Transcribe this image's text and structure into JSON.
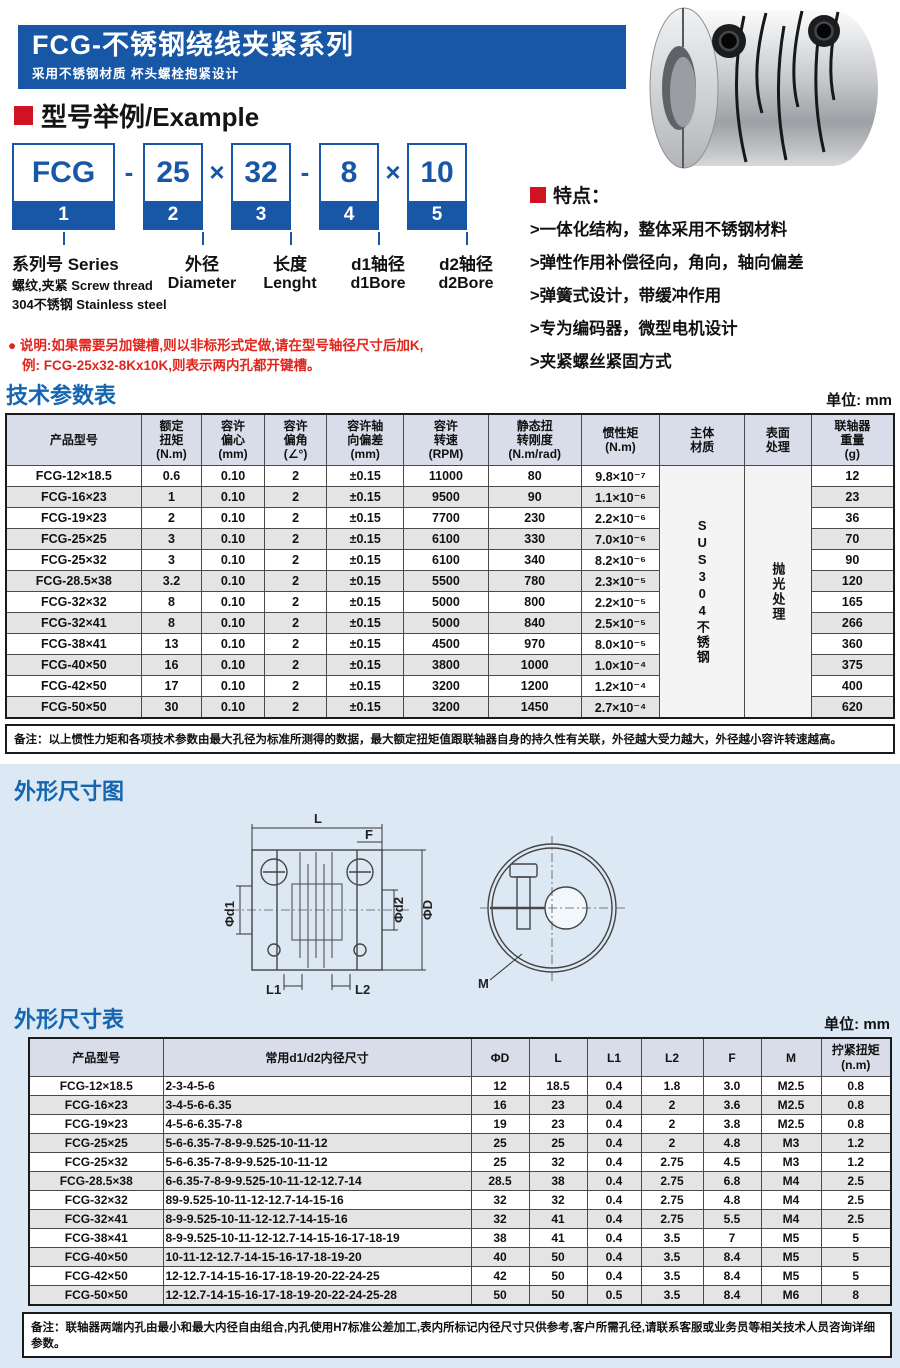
{
  "page": {
    "accent_blue": "#1857a6",
    "section_blue": "#1565b0",
    "accent_red": "#cf1322",
    "panel_color": "#dce8f3"
  },
  "header": {
    "title": "FCG-不锈钢绕线夹紧系列",
    "subtitle": "采用不锈钢材质 杯头螺栓抱紧设计"
  },
  "example": {
    "section_title": "型号举例/Example",
    "boxes": [
      {
        "value": "FCG",
        "num": "1"
      },
      {
        "value": "25",
        "num": "2"
      },
      {
        "value": "32",
        "num": "3"
      },
      {
        "value": "8",
        "num": "4"
      },
      {
        "value": "10",
        "num": "5"
      }
    ],
    "separators": [
      "-",
      "×",
      "-",
      "×"
    ],
    "labels": [
      {
        "line1": "系列号 Series",
        "line2": "螺纹,夹紧 Screw thread",
        "line3": "304不锈钢 Stainless steel"
      },
      {
        "line1": "外径",
        "line2": "Diameter"
      },
      {
        "line1": "长度",
        "line2": "Lenght"
      },
      {
        "line1": "d1轴径",
        "line2": "d1Bore"
      },
      {
        "line1": "d2轴径",
        "line2": "d2Bore"
      }
    ]
  },
  "features": {
    "title": "特点：",
    "items": [
      ">一体化结构，整体采用不锈钢材料",
      ">弹性作用补偿径向，角向，轴向偏差",
      ">弹簧式设计，带缓冲作用",
      ">专为编码器，微型电机设计",
      ">夹紧螺丝紧固方式"
    ]
  },
  "note": {
    "bullet": "●",
    "line1": "说明:如果需要另加键槽,则以非标形式定做,请在型号轴径尺寸后加K,",
    "line2": "例: FCG-25x32-8Kx10K,则表示两内孔都开键槽。"
  },
  "tech_table": {
    "title": "技术参数表",
    "unit": "单位: mm",
    "headers": [
      "产品型号",
      "额定\n扭矩\n(N.m)",
      "容许\n偏心\n(mm)",
      "容许\n偏角\n(∠°)",
      "容许轴\n向偏差\n(mm)",
      "容许\n转速\n(RPM)",
      "静态扭\n转刚度\n(N.m/rad)",
      "惯性矩\n(N.m)",
      "主体\n材质",
      "表面\n处理",
      "联轴器\n重量\n(g)"
    ],
    "material": "SUS304不锈钢",
    "surface": "抛光处理",
    "rows": [
      {
        "cells": [
          "FCG-12×18.5",
          "0.6",
          "0.10",
          "2",
          "±0.15",
          "11000",
          "80",
          "9.8×10⁻⁷"
        ],
        "weight": "12"
      },
      {
        "cells": [
          "FCG-16×23",
          "1",
          "0.10",
          "2",
          "±0.15",
          "9500",
          "90",
          "1.1×10⁻⁶"
        ],
        "weight": "23"
      },
      {
        "cells": [
          "FCG-19×23",
          "2",
          "0.10",
          "2",
          "±0.15",
          "7700",
          "230",
          "2.2×10⁻⁶"
        ],
        "weight": "36"
      },
      {
        "cells": [
          "FCG-25×25",
          "3",
          "0.10",
          "2",
          "±0.15",
          "6100",
          "330",
          "7.0×10⁻⁶"
        ],
        "weight": "70"
      },
      {
        "cells": [
          "FCG-25×32",
          "3",
          "0.10",
          "2",
          "±0.15",
          "6100",
          "340",
          "8.2×10⁻⁶"
        ],
        "weight": "90"
      },
      {
        "cells": [
          "FCG-28.5×38",
          "3.2",
          "0.10",
          "2",
          "±0.15",
          "5500",
          "780",
          "2.3×10⁻⁵"
        ],
        "weight": "120"
      },
      {
        "cells": [
          "FCG-32×32",
          "8",
          "0.10",
          "2",
          "±0.15",
          "5000",
          "800",
          "2.2×10⁻⁵"
        ],
        "weight": "165"
      },
      {
        "cells": [
          "FCG-32×41",
          "8",
          "0.10",
          "2",
          "±0.15",
          "5000",
          "840",
          "2.5×10⁻⁵"
        ],
        "weight": "266"
      },
      {
        "cells": [
          "FCG-38×41",
          "13",
          "0.10",
          "2",
          "±0.15",
          "4500",
          "970",
          "8.0×10⁻⁵"
        ],
        "weight": "360"
      },
      {
        "cells": [
          "FCG-40×50",
          "16",
          "0.10",
          "2",
          "±0.15",
          "3800",
          "1000",
          "1.0×10⁻⁴"
        ],
        "weight": "375"
      },
      {
        "cells": [
          "FCG-42×50",
          "17",
          "0.10",
          "2",
          "±0.15",
          "3200",
          "1200",
          "1.2×10⁻⁴"
        ],
        "weight": "400"
      },
      {
        "cells": [
          "FCG-50×50",
          "30",
          "0.10",
          "2",
          "±0.15",
          "3200",
          "1450",
          "2.7×10⁻⁴"
        ],
        "weight": "620"
      }
    ],
    "footnote": "备注：以上惯性力矩和各项技术参数由最大孔径为标准所测得的数据，最大额定扭矩值跟联轴器自身的持久性有关联，外径越大受力越大，外径越小容许转速越高。"
  },
  "dim_diagram": {
    "title": "外形尺寸图",
    "labels": {
      "L": "L",
      "F": "F",
      "d1": "Φd1",
      "d2": "Φd2",
      "D": "ΦD",
      "L1": "L1",
      "L2": "L2",
      "M": "M"
    }
  },
  "dim_table": {
    "title": "外形尺寸表",
    "unit": "单位: mm",
    "headers": [
      "产品型号",
      "常用d1/d2内径尺寸",
      "ΦD",
      "L",
      "L1",
      "L2",
      "F",
      "M",
      "拧紧扭矩\n(n.m)"
    ],
    "rows": [
      [
        "FCG-12×18.5",
        "2-3-4-5-6",
        "12",
        "18.5",
        "0.4",
        "1.8",
        "3.0",
        "M2.5",
        "0.8"
      ],
      [
        "FCG-16×23",
        "3-4-5-6-6.35",
        "16",
        "23",
        "0.4",
        "2",
        "3.6",
        "M2.5",
        "0.8"
      ],
      [
        "FCG-19×23",
        "4-5-6-6.35-7-8",
        "19",
        "23",
        "0.4",
        "2",
        "3.8",
        "M2.5",
        "0.8"
      ],
      [
        "FCG-25×25",
        "5-6-6.35-7-8-9-9.525-10-11-12",
        "25",
        "25",
        "0.4",
        "2",
        "4.8",
        "M3",
        "1.2"
      ],
      [
        "FCG-25×32",
        "5-6-6.35-7-8-9-9.525-10-11-12",
        "25",
        "32",
        "0.4",
        "2.75",
        "4.5",
        "M3",
        "1.2"
      ],
      [
        "FCG-28.5×38",
        "6-6.35-7-8-9-9.525-10-11-12-12.7-14",
        "28.5",
        "38",
        "0.4",
        "2.75",
        "6.8",
        "M4",
        "2.5"
      ],
      [
        "FCG-32×32",
        "89-9.525-10-11-12-12.7-14-15-16",
        "32",
        "32",
        "0.4",
        "2.75",
        "4.8",
        "M4",
        "2.5"
      ],
      [
        "FCG-32×41",
        "8-9-9.525-10-11-12-12.7-14-15-16",
        "32",
        "41",
        "0.4",
        "2.75",
        "5.5",
        "M4",
        "2.5"
      ],
      [
        "FCG-38×41",
        "8-9-9.525-10-11-12-12.7-14-15-16-17-18-19",
        "38",
        "41",
        "0.4",
        "3.5",
        "7",
        "M5",
        "5"
      ],
      [
        "FCG-40×50",
        "10-11-12-12.7-14-15-16-17-18-19-20",
        "40",
        "50",
        "0.4",
        "3.5",
        "8.4",
        "M5",
        "5"
      ],
      [
        "FCG-42×50",
        "12-12.7-14-15-16-17-18-19-20-22-24-25",
        "42",
        "50",
        "0.4",
        "3.5",
        "8.4",
        "M5",
        "5"
      ],
      [
        "FCG-50×50",
        "12-12.7-14-15-16-17-18-19-20-22-24-25-28",
        "50",
        "50",
        "0.5",
        "3.5",
        "8.4",
        "M6",
        "8"
      ]
    ],
    "footnote": "备注：联轴器两端内孔由最小和最大内径自由组合,内孔使用H7标准公差加工,表内所标记内径尺寸只供参考,客户所需孔径,请联系客服或业务员等相关技术人员咨询详细参数。"
  }
}
